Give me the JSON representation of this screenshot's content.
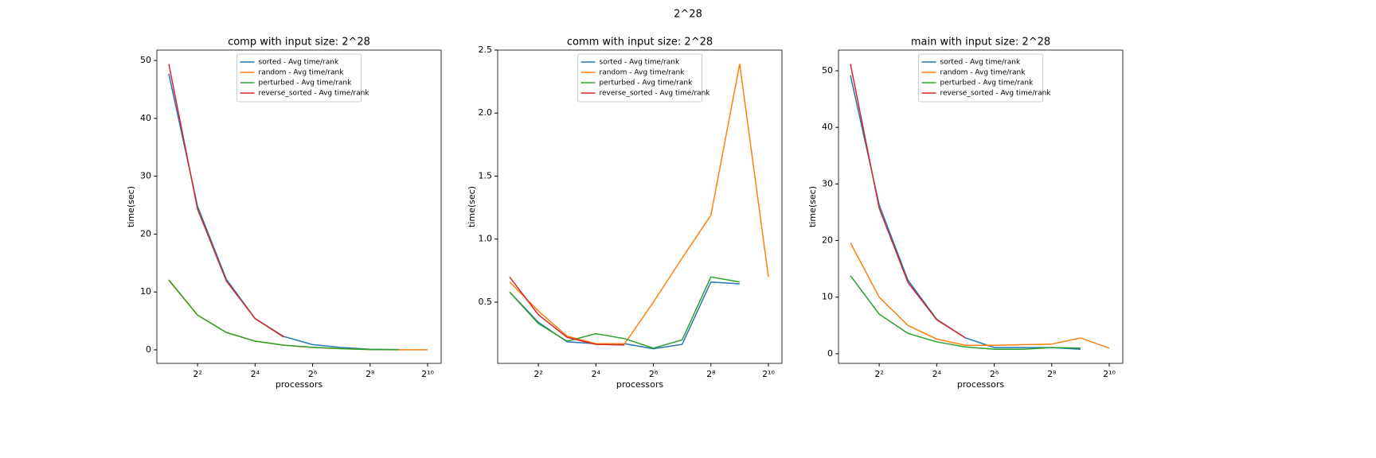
{
  "title": "2^28",
  "chart_data": [
    {
      "type": "line",
      "title": "comp with input size: 2^28",
      "xlabel": "processors",
      "ylabel": "time(sec)",
      "x": [
        2,
        4,
        8,
        16,
        32,
        64,
        128,
        256,
        512,
        1024
      ],
      "xscale": "log2",
      "xlim": [
        1.5,
        1419
      ],
      "ylim": [
        -2.34,
        51.8
      ],
      "xticks": [
        {
          "value": 4,
          "label": "2²"
        },
        {
          "value": 16,
          "label": "2⁴"
        },
        {
          "value": 64,
          "label": "2⁶"
        },
        {
          "value": 256,
          "label": "2⁸"
        },
        {
          "value": 1024,
          "label": "2¹⁰"
        }
      ],
      "yticks": [
        0,
        10,
        20,
        30,
        40,
        50
      ],
      "legend": "upper center",
      "series": [
        {
          "name": "sorted - Avg time/rank",
          "color": "#1f77b4",
          "values": [
            47.7,
            24.8,
            12.2,
            5.4,
            2.3,
            0.9,
            0.4,
            0.1,
            0.05,
            null
          ]
        },
        {
          "name": "random - Avg time/rank",
          "color": "#ff7f0e",
          "values": [
            12.0,
            6.0,
            3.0,
            1.5,
            0.8,
            0.4,
            0.2,
            0.05,
            0.02,
            0.01
          ]
        },
        {
          "name": "perturbed - Avg time/rank",
          "color": "#2ca02c",
          "values": [
            12.1,
            6.0,
            3.0,
            1.5,
            0.8,
            0.45,
            0.2,
            0.05,
            0.02,
            null
          ]
        },
        {
          "name": "reverse_sorted - Avg time/rank",
          "color": "#d62728",
          "values": [
            49.4,
            24.3,
            11.9,
            5.4,
            2.2,
            null,
            null,
            null,
            null,
            null
          ]
        }
      ]
    },
    {
      "type": "line",
      "title": "comm with input size: 2^28",
      "xlabel": "processors",
      "ylabel": "time(sec)",
      "x": [
        2,
        4,
        8,
        16,
        32,
        64,
        128,
        256,
        512,
        1024
      ],
      "xscale": "log2",
      "xlim": [
        1.5,
        1419
      ],
      "ylim": [
        0.014,
        2.5
      ],
      "xticks": [
        {
          "value": 4,
          "label": "2²"
        },
        {
          "value": 16,
          "label": "2⁴"
        },
        {
          "value": 64,
          "label": "2⁶"
        },
        {
          "value": 256,
          "label": "2⁸"
        },
        {
          "value": 1024,
          "label": "2¹⁰"
        }
      ],
      "yticks": [
        0.5,
        {
          "value": 1,
          "label": "1.0"
        },
        1.5,
        {
          "value": 2,
          "label": "2.0"
        },
        2.5
      ],
      "legend": "upper center",
      "series": [
        {
          "name": "sorted - Avg time/rank",
          "color": "#1f77b4",
          "values": [
            0.58,
            0.34,
            0.185,
            0.17,
            0.17,
            0.13,
            0.165,
            0.66,
            0.645,
            null
          ]
        },
        {
          "name": "random - Avg time/rank",
          "color": "#ff7f0e",
          "values": [
            0.66,
            0.43,
            0.23,
            0.17,
            0.17,
            0.5,
            0.85,
            1.19,
            2.39,
            0.7
          ]
        },
        {
          "name": "perturbed - Avg time/rank",
          "color": "#2ca02c",
          "values": [
            0.58,
            0.33,
            0.19,
            0.25,
            0.21,
            0.135,
            0.2,
            0.7,
            0.66,
            null
          ]
        },
        {
          "name": "reverse_sorted - Avg time/rank",
          "color": "#d62728",
          "values": [
            0.7,
            0.4,
            0.22,
            0.165,
            0.16,
            null,
            null,
            null,
            null,
            null
          ]
        }
      ]
    },
    {
      "type": "line",
      "title": "main with input size: 2^28",
      "xlabel": "processors",
      "ylabel": "time(sec)",
      "x": [
        2,
        4,
        8,
        16,
        32,
        64,
        128,
        256,
        512,
        1024
      ],
      "xscale": "log2",
      "xlim": [
        1.5,
        1419
      ],
      "ylim": [
        -1.7,
        53.65
      ],
      "xticks": [
        {
          "value": 4,
          "label": "2²"
        },
        {
          "value": 16,
          "label": "2⁴"
        },
        {
          "value": 64,
          "label": "2⁶"
        },
        {
          "value": 256,
          "label": "2⁸"
        },
        {
          "value": 1024,
          "label": "2¹⁰"
        }
      ],
      "yticks": [
        0,
        10,
        20,
        30,
        40,
        50
      ],
      "legend": "upper center",
      "series": [
        {
          "name": "sorted - Avg time/rank",
          "color": "#1f77b4",
          "values": [
            49.2,
            26.3,
            13.0,
            6.1,
            2.8,
            1.1,
            1.1,
            1.1,
            0.8,
            null
          ]
        },
        {
          "name": "random - Avg time/rank",
          "color": "#ff7f0e",
          "values": [
            19.6,
            10.0,
            5.0,
            2.6,
            1.5,
            1.5,
            1.6,
            1.7,
            2.8,
            1.0
          ]
        },
        {
          "name": "perturbed - Avg time/rank",
          "color": "#2ca02c",
          "values": [
            13.8,
            7.0,
            3.6,
            2.1,
            1.2,
            0.8,
            0.8,
            1.1,
            1.0,
            null
          ]
        },
        {
          "name": "reverse_sorted - Avg time/rank",
          "color": "#d62728",
          "values": [
            51.2,
            25.7,
            12.6,
            6.0,
            2.8,
            null,
            null,
            null,
            null,
            null
          ]
        }
      ]
    }
  ]
}
